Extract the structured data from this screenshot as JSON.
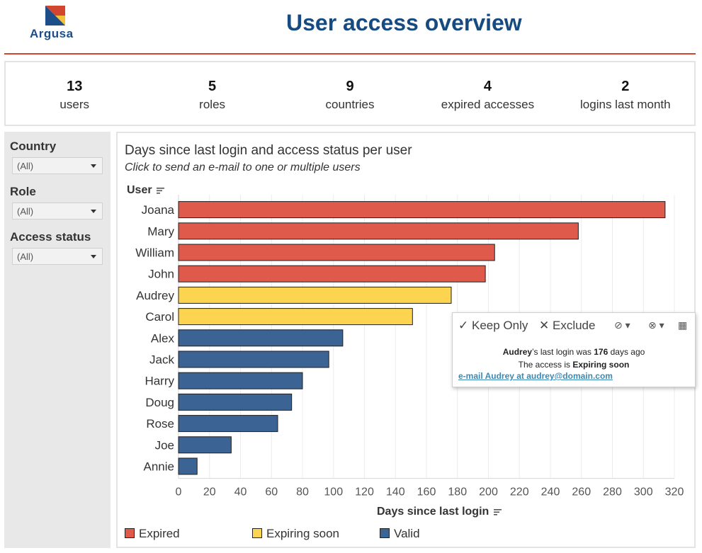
{
  "header": {
    "logo_text": "Argusa",
    "title": "User access overview"
  },
  "kpis": [
    {
      "value": "13",
      "label": "users"
    },
    {
      "value": "5",
      "label": "roles"
    },
    {
      "value": "9",
      "label": "countries"
    },
    {
      "value": "4",
      "label": "expired accesses"
    },
    {
      "value": "2",
      "label": "logins last month"
    }
  ],
  "filters": [
    {
      "label": "Country",
      "value": "(All)"
    },
    {
      "label": "Role",
      "value": "(All)"
    },
    {
      "label": "Access status",
      "value": "(All)"
    }
  ],
  "chart": {
    "title": "Days since last login and access status per user",
    "subtitle": "Click to send an e-mail to one or multiple users",
    "column_header": "User"
  },
  "chart_data": {
    "type": "bar",
    "orientation": "horizontal",
    "xlabel": "Days since last login",
    "ylabel": "User",
    "xlim": [
      0,
      320
    ],
    "xticks": [
      0,
      20,
      40,
      60,
      80,
      100,
      120,
      140,
      160,
      180,
      200,
      220,
      240,
      260,
      280,
      300,
      320
    ],
    "grid": "vertical",
    "legend_position": "bottom",
    "categories": [
      "Joana",
      "Mary",
      "William",
      "John",
      "Audrey",
      "Carol",
      "Alex",
      "Jack",
      "Harry",
      "Doug",
      "Rose",
      "Joe",
      "Annie"
    ],
    "values": [
      314,
      258,
      204,
      198,
      176,
      151,
      106,
      97,
      80,
      73,
      64,
      34,
      12
    ],
    "status": [
      "Expired",
      "Expired",
      "Expired",
      "Expired",
      "Expiring soon",
      "Expiring soon",
      "Valid",
      "Valid",
      "Valid",
      "Valid",
      "Valid",
      "Valid",
      "Valid"
    ],
    "legend": [
      {
        "name": "Expired",
        "color": "#e05a4c"
      },
      {
        "name": "Expiring soon",
        "color": "#fdd44f"
      },
      {
        "name": "Valid",
        "color": "#3b6495"
      }
    ]
  },
  "tooltip": {
    "keep_only": "Keep Only",
    "exclude": "Exclude",
    "user": "Audrey",
    "line1_mid": "’s last login was",
    "days": "176",
    "line1_end": "days ago",
    "line2_start": "The access is",
    "status": "Expiring soon",
    "link": "e-mail Audrey at audrey@domain.com"
  }
}
